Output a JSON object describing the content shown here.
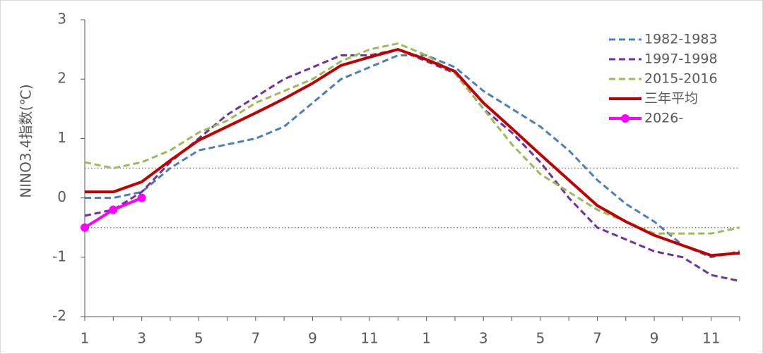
{
  "chart_data": {
    "type": "line",
    "y_label": "NINO3.4指数(℃)",
    "categories": [
      1,
      null,
      3,
      null,
      5,
      null,
      7,
      null,
      9,
      null,
      11,
      null,
      1,
      null,
      3,
      null,
      5,
      null,
      7,
      null,
      9,
      null,
      11,
      null
    ],
    "ylim": [
      -2,
      3
    ],
    "yticks": [
      -2,
      -1,
      0,
      1,
      2,
      3
    ],
    "reference_lines": [
      0.5,
      -0.5
    ],
    "legend": "upper right",
    "series": [
      {
        "name": "1982-1983",
        "color": "#4a7ebb",
        "dashed": true,
        "values": [
          0,
          0,
          0.1,
          0.5,
          0.8,
          0.9,
          1.0,
          1.2,
          1.6,
          2.0,
          2.2,
          2.4,
          2.4,
          2.2,
          1.8,
          1.5,
          1.2,
          0.8,
          0.3,
          -0.1,
          -0.4,
          -0.8,
          -1.0,
          -0.9
        ]
      },
      {
        "name": "1997-1998",
        "color": "#7030a0",
        "dashed": true,
        "values": [
          -0.3,
          -0.2,
          0.1,
          0.6,
          1.0,
          1.4,
          1.7,
          2.0,
          2.2,
          2.4,
          2.4,
          2.5,
          2.3,
          2.1,
          1.5,
          1.1,
          0.6,
          0.0,
          -0.5,
          -0.7,
          -0.9,
          -1.0,
          -1.3,
          -1.4
        ]
      },
      {
        "name": "2015-2016",
        "color": "#9bbb59",
        "dashed": true,
        "values": [
          0.6,
          0.5,
          0.6,
          0.8,
          1.1,
          1.3,
          1.6,
          1.8,
          2.0,
          2.3,
          2.5,
          2.6,
          2.4,
          2.1,
          1.5,
          0.9,
          0.4,
          0.1,
          -0.2,
          -0.4,
          -0.6,
          -0.6,
          -0.6,
          -0.5
        ]
      },
      {
        "name": "三年平均",
        "color": "#c00000",
        "dashed": false,
        "values": [
          0.1,
          0.1,
          0.27,
          0.63,
          0.97,
          1.2,
          1.43,
          1.67,
          1.93,
          2.23,
          2.37,
          2.5,
          2.33,
          2.13,
          1.6,
          1.17,
          0.73,
          0.3,
          -0.13,
          -0.4,
          -0.63,
          -0.8,
          -0.97,
          -0.93
        ]
      },
      {
        "name": "2026-",
        "color": "#ff00ff",
        "dashed": false,
        "markers": true,
        "values": [
          -0.5,
          -0.2,
          0,
          null,
          null,
          null,
          null,
          null,
          null,
          null,
          null,
          null,
          null,
          null,
          null,
          null,
          null,
          null,
          null,
          null,
          null,
          null,
          null,
          null
        ]
      }
    ]
  }
}
